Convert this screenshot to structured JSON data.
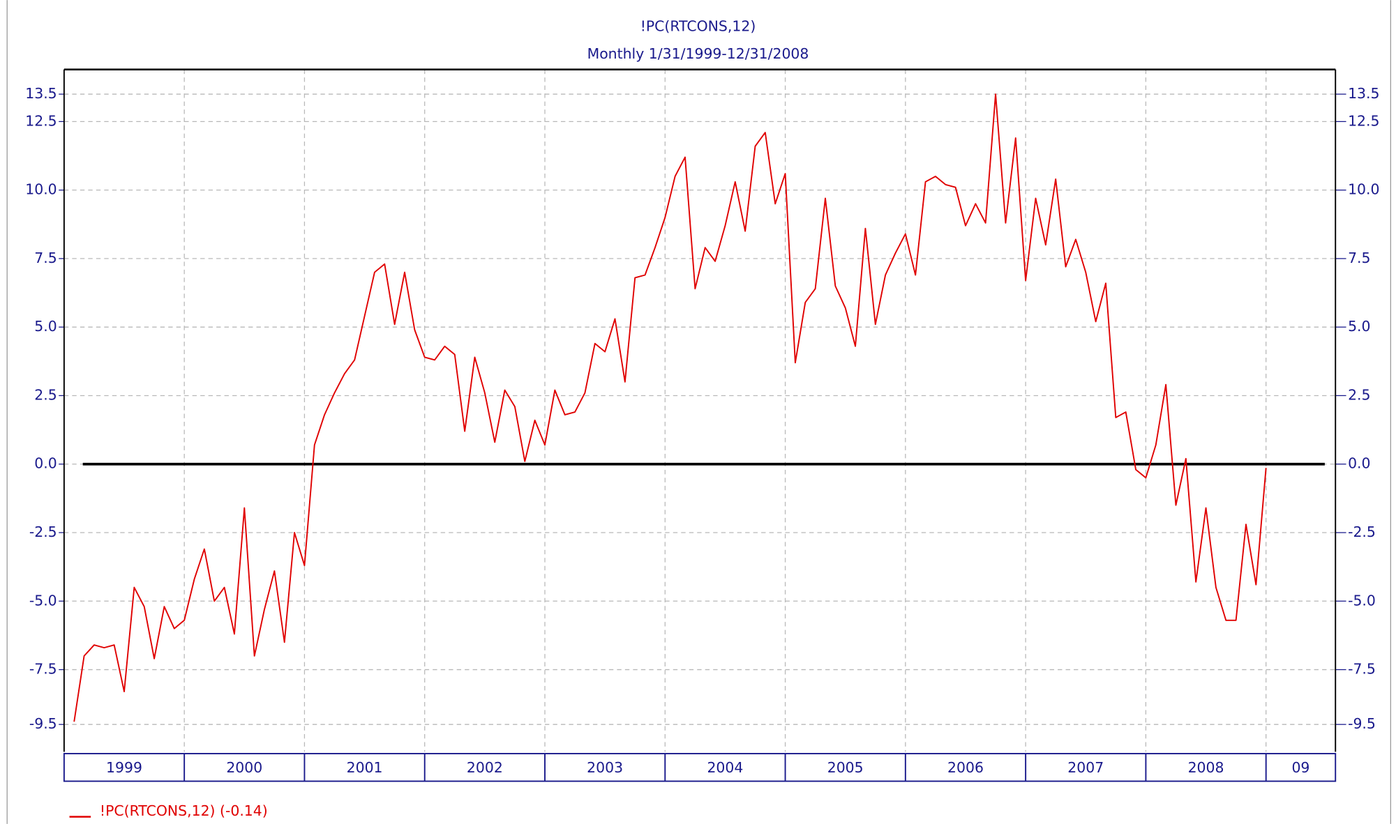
{
  "chart_data": {
    "type": "line",
    "title": "!PC(RTCONS,12)",
    "subtitle": "Monthly 1/31/1999-12/31/2008",
    "x": [
      "1999-01",
      "1999-02",
      "1999-03",
      "1999-04",
      "1999-05",
      "1999-06",
      "1999-07",
      "1999-08",
      "1999-09",
      "1999-10",
      "1999-11",
      "1999-12",
      "2000-01",
      "2000-02",
      "2000-03",
      "2000-04",
      "2000-05",
      "2000-06",
      "2000-07",
      "2000-08",
      "2000-09",
      "2000-10",
      "2000-11",
      "2000-12",
      "2001-01",
      "2001-02",
      "2001-03",
      "2001-04",
      "2001-05",
      "2001-06",
      "2001-07",
      "2001-08",
      "2001-09",
      "2001-10",
      "2001-11",
      "2001-12",
      "2002-01",
      "2002-02",
      "2002-03",
      "2002-04",
      "2002-05",
      "2002-06",
      "2002-07",
      "2002-08",
      "2002-09",
      "2002-10",
      "2002-11",
      "2002-12",
      "2003-01",
      "2003-02",
      "2003-03",
      "2003-04",
      "2003-05",
      "2003-06",
      "2003-07",
      "2003-08",
      "2003-09",
      "2003-10",
      "2003-11",
      "2003-12",
      "2004-01",
      "2004-02",
      "2004-03",
      "2004-04",
      "2004-05",
      "2004-06",
      "2004-07",
      "2004-08",
      "2004-09",
      "2004-10",
      "2004-11",
      "2004-12",
      "2005-01",
      "2005-02",
      "2005-03",
      "2005-04",
      "2005-05",
      "2005-06",
      "2005-07",
      "2005-08",
      "2005-09",
      "2005-10",
      "2005-11",
      "2005-12",
      "2006-01",
      "2006-02",
      "2006-03",
      "2006-04",
      "2006-05",
      "2006-06",
      "2006-07",
      "2006-08",
      "2006-09",
      "2006-10",
      "2006-11",
      "2006-12",
      "2007-01",
      "2007-02",
      "2007-03",
      "2007-04",
      "2007-05",
      "2007-06",
      "2007-07",
      "2007-08",
      "2007-09",
      "2007-10",
      "2007-11",
      "2007-12",
      "2008-01",
      "2008-02",
      "2008-03",
      "2008-04",
      "2008-05",
      "2008-06",
      "2008-07",
      "2008-08",
      "2008-09",
      "2008-10",
      "2008-11",
      "2008-12"
    ],
    "x_labels": [
      "1999",
      "2000",
      "2001",
      "2002",
      "2003",
      "2004",
      "2005",
      "2006",
      "2007",
      "2008",
      "09"
    ],
    "series": [
      {
        "name": "!PC(RTCONS,12) (-0.14)",
        "color": "#e00000",
        "values": [
          -9.4,
          -7.0,
          -6.6,
          -6.7,
          -6.6,
          -8.3,
          -4.5,
          -5.2,
          -7.1,
          -5.2,
          -6.0,
          -5.7,
          -4.2,
          -3.1,
          -5.0,
          -4.5,
          -6.2,
          -1.6,
          -7.0,
          -5.3,
          -3.9,
          -6.5,
          -2.5,
          -3.7,
          0.7,
          1.8,
          2.6,
          3.3,
          3.8,
          5.4,
          7.0,
          7.3,
          5.1,
          7.0,
          4.9,
          3.9,
          3.8,
          4.3,
          4.0,
          1.2,
          3.9,
          2.6,
          0.8,
          2.7,
          2.1,
          0.1,
          1.6,
          0.7,
          2.7,
          1.8,
          1.9,
          2.6,
          4.4,
          4.1,
          5.3,
          3.0,
          6.8,
          6.9,
          7.9,
          9.0,
          10.5,
          11.2,
          6.4,
          7.9,
          7.4,
          8.7,
          10.3,
          8.5,
          11.6,
          12.1,
          9.5,
          10.6,
          3.7,
          5.9,
          6.4,
          9.7,
          6.5,
          5.7,
          4.3,
          8.6,
          5.1,
          6.9,
          7.7,
          8.4,
          6.9,
          10.3,
          10.5,
          10.2,
          10.1,
          8.7,
          9.5,
          8.8,
          13.5,
          8.8,
          11.9,
          6.7,
          9.7,
          8.0,
          10.4,
          7.2,
          8.2,
          7.0,
          5.2,
          6.6,
          1.7,
          1.9,
          -0.2,
          -0.5,
          0.7,
          2.9,
          -1.5,
          0.2,
          -4.3,
          -1.6,
          -4.5,
          -5.7,
          -5.7,
          -2.2,
          -4.4,
          -0.14
        ]
      }
    ],
    "ylim": [
      -10.5,
      14.4
    ],
    "yticks": [
      -9.5,
      -7.5,
      {
        "value": -5,
        "label": "-5.0"
      },
      -2.5,
      {
        "value": 0,
        "label": "0.0"
      },
      2.5,
      {
        "value": 5,
        "label": "5.0"
      },
      7.5,
      {
        "value": 10,
        "label": "10.0"
      },
      12.5,
      13.5
    ],
    "grid": true
  }
}
